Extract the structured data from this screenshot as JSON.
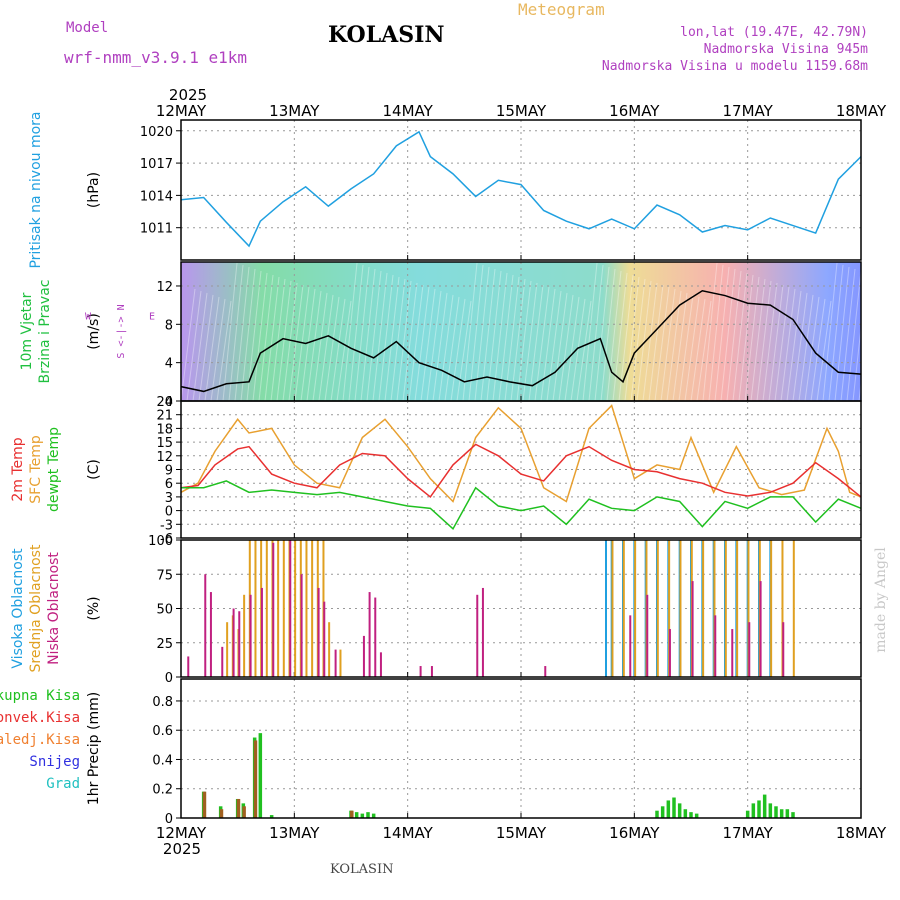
{
  "header": {
    "model_label": "Model",
    "model_name": "wrf-nmm_v3.9.1 e1km",
    "station": "KOLASIN",
    "subtitle": "Meteogram",
    "coords": "lon,lat (19.47E, 42.79N)",
    "elevation": "Nadmorska Visina 945m",
    "model_elevation": "Nadmorska Visina u modelu 1159.68m",
    "footer_station": "KOLASIN",
    "watermark": "made by Angel",
    "colors": {
      "model": "#b040c0",
      "subtitle": "#e8b860",
      "info": "#b040c0",
      "title": "#000000"
    }
  },
  "time_axis": {
    "year": "2025",
    "labels": [
      "12MAY",
      "13MAY",
      "14MAY",
      "15MAY",
      "16MAY",
      "17MAY",
      "18MAY"
    ]
  },
  "chart_data": [
    {
      "type": "line",
      "panel": "pressure",
      "ylabel_lines": [
        {
          "text": "Pritisak na nivou mora",
          "color": "#20a0e0"
        }
      ],
      "unit": "(hPa)",
      "yticks": [
        "1011",
        "1014",
        "1017",
        "1020"
      ],
      "ylim": [
        1008,
        1021
      ],
      "series": [
        {
          "color": "#20a0e0",
          "x": [
            0,
            0.2,
            0.4,
            0.6,
            0.7,
            0.9,
            1.1,
            1.3,
            1.5,
            1.7,
            1.9,
            2.1,
            2.2,
            2.4,
            2.6,
            2.8,
            3.0,
            3.2,
            3.4,
            3.6,
            3.8,
            4.0,
            4.2,
            4.4,
            4.6,
            4.8,
            5.0,
            5.2,
            5.4,
            5.6,
            5.8,
            6.0
          ],
          "values": [
            1013.6,
            1013.8,
            1011.5,
            1009.3,
            1011.6,
            1013.4,
            1014.8,
            1013.0,
            1014.6,
            1016.0,
            1018.6,
            1019.9,
            1017.6,
            1016.0,
            1013.9,
            1015.4,
            1015.0,
            1012.6,
            1011.6,
            1010.9,
            1011.8,
            1010.9,
            1013.1,
            1012.2,
            1010.6,
            1011.2,
            1010.8,
            1011.9,
            1011.2,
            1010.5,
            1015.5,
            1017.6
          ]
        }
      ]
    },
    {
      "type": "line",
      "panel": "wind",
      "ylabel_lines": [
        {
          "text": "10m Vjetar",
          "color": "#20c040"
        },
        {
          "text": "Brzina i Pravac",
          "color": "#20c040"
        }
      ],
      "unit": "(m/s)",
      "compass": {
        "n": "N",
        "s": "S",
        "e": "E",
        "w": "W"
      },
      "yticks": [
        "0",
        "4",
        "8",
        "12"
      ],
      "ylim": [
        0,
        14.5
      ],
      "series": [
        {
          "color": "#000000",
          "x": [
            0,
            0.2,
            0.4,
            0.6,
            0.7,
            0.9,
            1.1,
            1.3,
            1.5,
            1.7,
            1.9,
            2.1,
            2.3,
            2.5,
            2.7,
            2.9,
            3.1,
            3.3,
            3.5,
            3.7,
            3.8,
            3.9,
            4.0,
            4.2,
            4.4,
            4.6,
            4.8,
            5.0,
            5.2,
            5.4,
            5.6,
            5.8,
            6.0
          ],
          "values": [
            1.5,
            1.0,
            1.8,
            2.0,
            5.0,
            6.5,
            6.0,
            6.8,
            5.5,
            4.5,
            6.2,
            4.0,
            3.2,
            2.0,
            2.5,
            2.0,
            1.6,
            3.0,
            5.5,
            6.5,
            3.0,
            2.0,
            5.0,
            7.5,
            10.0,
            11.5,
            11.0,
            10.2,
            10.0,
            8.5,
            5.0,
            3.0,
            2.8
          ]
        }
      ]
    },
    {
      "type": "line",
      "panel": "temperature",
      "ylabel_lines": [
        {
          "text": "2m Temp",
          "color": "#e83030"
        },
        {
          "text": "SFC Temp",
          "color": "#e8a030"
        },
        {
          "text": "dewpt Temp",
          "color": "#20c020"
        }
      ],
      "unit": "(C)",
      "yticks": [
        "-6",
        "-3",
        "0",
        "3",
        "6",
        "9",
        "12",
        "15",
        "18",
        "21",
        "24"
      ],
      "ylim": [
        -6,
        24
      ],
      "series": [
        {
          "color": "#e8a030",
          "x": [
            0,
            0.15,
            0.3,
            0.5,
            0.6,
            0.8,
            1.0,
            1.2,
            1.4,
            1.6,
            1.8,
            2.0,
            2.2,
            2.4,
            2.6,
            2.8,
            3.0,
            3.2,
            3.4,
            3.6,
            3.8,
            4.0,
            4.2,
            4.4,
            4.5,
            4.7,
            4.9,
            5.1,
            5.3,
            5.5,
            5.7,
            5.8,
            5.9,
            6.0
          ],
          "values": [
            4.0,
            6.0,
            13.0,
            20.0,
            17.0,
            18.0,
            10.0,
            6.0,
            5.0,
            16.0,
            20.0,
            14.0,
            7.0,
            2.0,
            16.0,
            22.5,
            18.0,
            5.0,
            2.0,
            18.0,
            23.0,
            7.0,
            10.0,
            9.0,
            16.0,
            4.0,
            14.0,
            5.0,
            3.5,
            4.5,
            18.0,
            13.0,
            4.0,
            3.0
          ]
        },
        {
          "color": "#e83030",
          "x": [
            0,
            0.15,
            0.3,
            0.5,
            0.6,
            0.8,
            1.0,
            1.2,
            1.4,
            1.6,
            1.8,
            2.0,
            2.2,
            2.4,
            2.6,
            2.8,
            3.0,
            3.2,
            3.4,
            3.6,
            3.8,
            4.0,
            4.2,
            4.4,
            4.6,
            4.8,
            5.0,
            5.2,
            5.4,
            5.6,
            5.8,
            6.0
          ],
          "values": [
            5.0,
            5.5,
            10.0,
            13.5,
            14.0,
            8.0,
            6.0,
            5.0,
            10.0,
            12.5,
            12.0,
            7.0,
            3.0,
            10.0,
            14.5,
            12.0,
            8.0,
            6.5,
            12.0,
            14.0,
            11.0,
            9.0,
            8.5,
            7.0,
            6.0,
            4.0,
            3.2,
            4.0,
            6.0,
            10.5,
            7.0,
            3.0
          ]
        },
        {
          "color": "#20c020",
          "x": [
            0,
            0.2,
            0.4,
            0.6,
            0.8,
            1.0,
            1.2,
            1.4,
            1.6,
            1.8,
            2.0,
            2.2,
            2.4,
            2.6,
            2.8,
            3.0,
            3.2,
            3.4,
            3.6,
            3.8,
            4.0,
            4.2,
            4.4,
            4.6,
            4.8,
            5.0,
            5.2,
            5.4,
            5.6,
            5.8,
            6.0
          ],
          "values": [
            5.0,
            5.0,
            6.5,
            4.0,
            4.5,
            4.0,
            3.5,
            4.0,
            3.0,
            2.0,
            1.0,
            0.5,
            -4.0,
            5.0,
            1.0,
            0.0,
            1.0,
            -3.0,
            2.5,
            0.5,
            0.0,
            3.0,
            2.0,
            -3.5,
            2.0,
            0.5,
            3.0,
            3.0,
            -2.5,
            2.5,
            0.5
          ]
        }
      ]
    },
    {
      "type": "bar",
      "panel": "clouds",
      "ylabel_lines": [
        {
          "text": "Visoka Oblacnost",
          "color": "#20a0e0"
        },
        {
          "text": "Srednja Oblacnost",
          "color": "#e0a020"
        },
        {
          "text": "Niska Oblacnost",
          "color": "#c02080"
        }
      ],
      "unit": "(%)",
      "yticks": [
        "0",
        "25",
        "50",
        "75",
        "100"
      ],
      "ylim": [
        0,
        100
      ],
      "series": [
        {
          "name": "Visoka Oblacnost",
          "color": "#20a0e0",
          "x": [
            3.75,
            3.8,
            3.9,
            4.0,
            4.1,
            4.2,
            4.3,
            4.4,
            4.5,
            4.6,
            4.7,
            4.8,
            4.9,
            5.0,
            5.1,
            5.2
          ],
          "values": [
            100,
            100,
            100,
            100,
            100,
            100,
            100,
            100,
            100,
            100,
            100,
            100,
            100,
            100,
            100,
            100
          ]
        },
        {
          "name": "Srednja Oblacnost",
          "color": "#e0a020",
          "x": [
            0.4,
            0.45,
            0.5,
            0.55,
            0.6,
            0.65,
            0.7,
            0.75,
            0.8,
            0.85,
            0.9,
            0.95,
            1.0,
            1.05,
            1.1,
            1.15,
            1.2,
            1.25,
            1.3,
            1.4,
            3.8,
            3.9,
            4.0,
            4.1,
            4.2,
            4.3,
            4.4,
            4.5,
            4.6,
            4.7,
            4.8,
            4.9,
            5.0,
            5.1,
            5.2,
            5.3,
            5.4
          ],
          "values": [
            40,
            45,
            35,
            60,
            100,
            100,
            100,
            100,
            100,
            100,
            100,
            100,
            100,
            100,
            100,
            100,
            100,
            100,
            40,
            20,
            100,
            100,
            100,
            100,
            100,
            100,
            100,
            100,
            100,
            100,
            100,
            100,
            100,
            100,
            100,
            100,
            100
          ]
        },
        {
          "name": "Niska Oblacnost",
          "color": "#c02080",
          "x": [
            0.05,
            0.2,
            0.25,
            0.35,
            0.45,
            0.5,
            0.6,
            0.7,
            0.8,
            0.95,
            1.05,
            1.2,
            1.25,
            1.35,
            1.6,
            1.65,
            1.7,
            1.75,
            2.1,
            2.2,
            2.6,
            2.65,
            3.2,
            3.95,
            4.1,
            4.3,
            4.5,
            4.7,
            4.85,
            5.0,
            5.1,
            5.3
          ],
          "values": [
            15,
            75,
            62,
            22,
            50,
            48,
            60,
            65,
            98,
            100,
            75,
            65,
            55,
            20,
            30,
            62,
            58,
            18,
            8,
            8,
            60,
            65,
            8,
            45,
            60,
            35,
            70,
            45,
            35,
            40,
            70,
            40
          ]
        }
      ]
    },
    {
      "type": "bar",
      "panel": "precipitation",
      "ylabel_lines": [
        {
          "text": "Ukupna Kisa",
          "color": "#20c020"
        },
        {
          "text": "Konvek.Kisa",
          "color": "#e83030"
        },
        {
          "text": "Zaledj.Kisa",
          "color": "#f08030"
        },
        {
          "text": "Snijeg",
          "color": "#3030e0"
        },
        {
          "text": "Grad",
          "color": "#20c0c0"
        }
      ],
      "unit": "1hr Precip (mm)",
      "yticks": [
        "0",
        "0.2",
        "0.4",
        "0.6",
        "0.8"
      ],
      "ylim": [
        0,
        0.95
      ],
      "series": [
        {
          "name": "Ukupna Kisa",
          "color": "#20c020",
          "x": [
            0.2,
            0.35,
            0.5,
            0.55,
            0.65,
            0.7,
            0.8,
            1.5,
            1.55,
            1.6,
            1.65,
            1.7,
            4.2,
            4.25,
            4.3,
            4.35,
            4.4,
            4.45,
            4.5,
            4.55,
            5.0,
            5.05,
            5.1,
            5.15,
            5.2,
            5.25,
            5.3,
            5.35,
            5.4
          ],
          "values": [
            0.18,
            0.08,
            0.13,
            0.1,
            0.55,
            0.58,
            0.02,
            0.05,
            0.04,
            0.03,
            0.04,
            0.03,
            0.05,
            0.08,
            0.12,
            0.14,
            0.1,
            0.06,
            0.04,
            0.03,
            0.05,
            0.1,
            0.12,
            0.16,
            0.1,
            0.08,
            0.06,
            0.06,
            0.04
          ]
        },
        {
          "name": "Konvek.Kisa",
          "color": "#a06020",
          "x": [
            0.2,
            0.35,
            0.5,
            0.55,
            0.65,
            1.5
          ],
          "values": [
            0.18,
            0.06,
            0.13,
            0.08,
            0.53,
            0.05
          ]
        }
      ]
    }
  ]
}
